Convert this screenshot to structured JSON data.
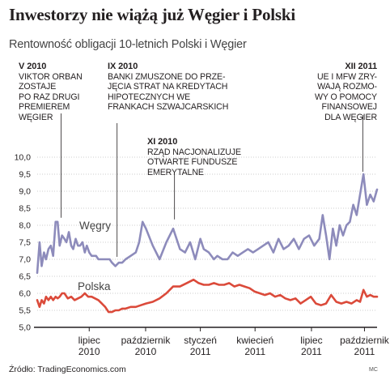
{
  "header": {
    "title": "Inwestorzy nie wiążą już Węgier i Polski",
    "subtitle": "Rentowność obligacji 10-letnich Polski i Węgier"
  },
  "annotations": [
    {
      "date": "V 2010",
      "lines": [
        "VIKTOR ORBAN",
        "ZOSTAJE",
        "PO RAZ DRUGI",
        "PREMIEREM",
        "WĘGIER"
      ]
    },
    {
      "date": "IX 2010",
      "lines": [
        "BANKI ZMUSZONE DO PRZE-",
        "JĘCIA STRAT NA KREDYTACH",
        "HIPOTECZNYCH WE",
        "FRANKACH SZWAJCARSKICH"
      ]
    },
    {
      "date": "XI 2010",
      "lines": [
        "RZĄD NACJONALIZUJE",
        "OTWARTE FUNDUSZE",
        "EMERYTALNE"
      ]
    },
    {
      "date": "XII 2011",
      "lines": [
        "UE I MFW ZRY-",
        "WAJĄ ROZMO-",
        "WY O POMOCY",
        "FINANSOWEJ",
        "DLA WĘGIER"
      ]
    }
  ],
  "colors": {
    "hungary": "#8d8bbb",
    "poland": "#db4a3a",
    "axis": "#231f20"
  },
  "chart_data": {
    "type": "line",
    "title": "Rentowność obligacji 10-letnich Polski i Węgier",
    "ylim": [
      5.0,
      10.0
    ],
    "yticks": [
      "5,0",
      "5,5",
      "6,0",
      "6,5",
      "7,0",
      "7,5",
      "8,0",
      "8,5",
      "9,0",
      "9,5",
      "10,0"
    ],
    "xlim": [
      0,
      100
    ],
    "xticks": [
      {
        "x": 15.3,
        "label": [
          "lipiec",
          "2010"
        ]
      },
      {
        "x": 31.9,
        "label": [
          "październik",
          "2010"
        ]
      },
      {
        "x": 48.0,
        "label": [
          "styczeń",
          "2011"
        ]
      },
      {
        "x": 64.1,
        "label": [
          "kwiecień",
          "2011"
        ]
      },
      {
        "x": 80.7,
        "label": [
          "lipiec",
          "2011"
        ]
      },
      {
        "x": 96.3,
        "label": [
          "październik",
          "2011"
        ]
      }
    ],
    "series": [
      {
        "name": "Węgry",
        "color_key": "hungary",
        "x": [
          0,
          0.7,
          1.3,
          2.0,
          2.6,
          3.3,
          4.0,
          4.7,
          5.4,
          6.0,
          6.6,
          7.3,
          8.0,
          8.6,
          9.3,
          10.0,
          10.6,
          11.3,
          12.0,
          12.6,
          13.3,
          14.0,
          14.6,
          15.3,
          16.0,
          16.6,
          17.3,
          18.0,
          18.6,
          19.3,
          20.0,
          20.6,
          21.3,
          22.0,
          23.0,
          24.0,
          25.0,
          26.0,
          27.5,
          29.0,
          30.0,
          31.0,
          32.0,
          34.0,
          36.0,
          38.0,
          40.0,
          42.0,
          43.5,
          45.0,
          46.5,
          48.0,
          49.0,
          50.5,
          52.0,
          53.0,
          54.5,
          56.0,
          57.5,
          59.0,
          60.5,
          62.0,
          63.5,
          65.0,
          66.5,
          68.0,
          69.5,
          71.0,
          72.5,
          74.0,
          75.5,
          77.0,
          78.5,
          80.0,
          81.5,
          83.0,
          84.0,
          85.0,
          86.0,
          87.0,
          88.0,
          89.0,
          90.0,
          91.0,
          92.0,
          93.0,
          94.0,
          95.0,
          96.0,
          97.0,
          98.0,
          99.0,
          100.0
        ],
        "values": [
          6.6,
          7.5,
          6.8,
          7.2,
          7.0,
          7.3,
          7.4,
          7.1,
          8.1,
          8.1,
          7.4,
          7.7,
          7.6,
          7.5,
          7.8,
          7.4,
          7.3,
          7.6,
          7.4,
          7.4,
          7.5,
          7.2,
          7.4,
          7.2,
          7.1,
          7.1,
          7.1,
          7.0,
          7.0,
          7.0,
          7.0,
          7.0,
          7.0,
          6.9,
          6.8,
          6.9,
          6.9,
          7.0,
          7.1,
          7.2,
          7.5,
          8.1,
          7.9,
          7.4,
          7.0,
          7.5,
          7.9,
          7.3,
          7.2,
          7.5,
          7.0,
          7.6,
          7.3,
          7.2,
          7.0,
          7.1,
          7.0,
          7.0,
          7.2,
          7.1,
          7.2,
          7.3,
          7.2,
          7.3,
          7.4,
          7.5,
          7.2,
          7.6,
          7.3,
          7.4,
          7.6,
          7.3,
          7.6,
          7.7,
          7.4,
          7.6,
          8.3,
          7.7,
          7.0,
          7.9,
          7.4,
          8.0,
          7.7,
          8.0,
          8.1,
          8.6,
          8.3,
          8.9,
          9.5,
          8.6,
          8.9,
          8.7,
          9.05
        ]
      },
      {
        "name": "Polska",
        "color_key": "poland",
        "x": [
          0,
          0.7,
          1.3,
          2.0,
          2.6,
          3.3,
          4.0,
          4.7,
          5.4,
          6.0,
          6.6,
          7.3,
          8.0,
          9.0,
          10.0,
          11.0,
          12.0,
          13.0,
          14.0,
          15.0,
          16.0,
          17.0,
          18.0,
          19.0,
          20.0,
          21.0,
          22.0,
          23.0,
          24.0,
          25.0,
          26.0,
          27.5,
          29.0,
          30.5,
          32.0,
          34.0,
          36.0,
          38.0,
          40.0,
          42.0,
          44.0,
          46.0,
          47.5,
          49.0,
          50.5,
          52.0,
          53.5,
          55.0,
          56.5,
          58.0,
          59.5,
          61.0,
          62.5,
          64.0,
          65.5,
          67.0,
          68.5,
          70.0,
          71.5,
          73.0,
          74.5,
          76.0,
          77.5,
          79.0,
          80.5,
          82.0,
          83.5,
          85.0,
          86.5,
          88.0,
          89.5,
          91.0,
          92.5,
          94.0,
          95.0,
          96.0,
          97.0,
          98.0,
          99.0,
          100.0
        ],
        "values": [
          5.8,
          5.6,
          5.8,
          5.7,
          5.9,
          5.8,
          5.9,
          5.8,
          5.9,
          5.85,
          5.9,
          6.0,
          6.0,
          5.85,
          5.9,
          5.8,
          5.85,
          5.9,
          6.0,
          5.9,
          5.9,
          5.85,
          5.8,
          5.7,
          5.6,
          5.45,
          5.45,
          5.5,
          5.5,
          5.55,
          5.55,
          5.6,
          5.6,
          5.65,
          5.7,
          5.75,
          5.85,
          6.0,
          6.2,
          6.2,
          6.3,
          6.4,
          6.3,
          6.25,
          6.25,
          6.3,
          6.25,
          6.25,
          6.3,
          6.2,
          6.25,
          6.2,
          6.15,
          6.05,
          6.0,
          5.95,
          6.0,
          5.9,
          5.95,
          5.85,
          5.8,
          5.85,
          5.7,
          5.8,
          5.9,
          5.7,
          5.65,
          5.7,
          5.95,
          5.75,
          5.7,
          5.75,
          5.7,
          5.8,
          5.75,
          6.1,
          5.9,
          5.95,
          5.9,
          5.9
        ]
      }
    ]
  },
  "footer": {
    "source": "Źródło: TradingEconomics.com",
    "credit": "MC"
  }
}
